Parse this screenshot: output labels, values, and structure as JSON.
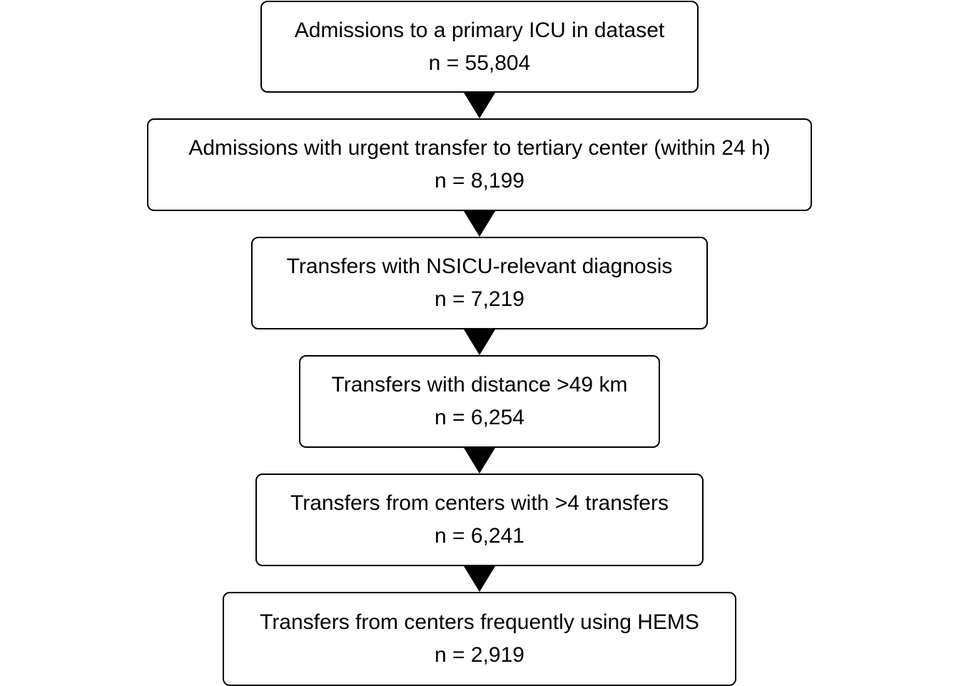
{
  "flowchart": {
    "steps": [
      {
        "label": "Admissions to a primary ICU in dataset",
        "count": "n = 55,804"
      },
      {
        "label": "Admissions with urgent transfer to tertiary center (within 24 h)",
        "count": "n = 8,199"
      },
      {
        "label": "Transfers with NSICU-relevant diagnosis",
        "count": "n = 7,219"
      },
      {
        "label": "Transfers with distance >49 km",
        "count": "n = 6,254"
      },
      {
        "label": "Transfers from centers with >4 transfers",
        "count": "n = 6,241"
      },
      {
        "label": "Transfers from centers frequently using HEMS",
        "count": "n = 2,919"
      }
    ],
    "colors": {
      "box_border": "#000000",
      "box_fill": "#ffffff",
      "arrow": "#000000",
      "text": "#000000"
    }
  }
}
